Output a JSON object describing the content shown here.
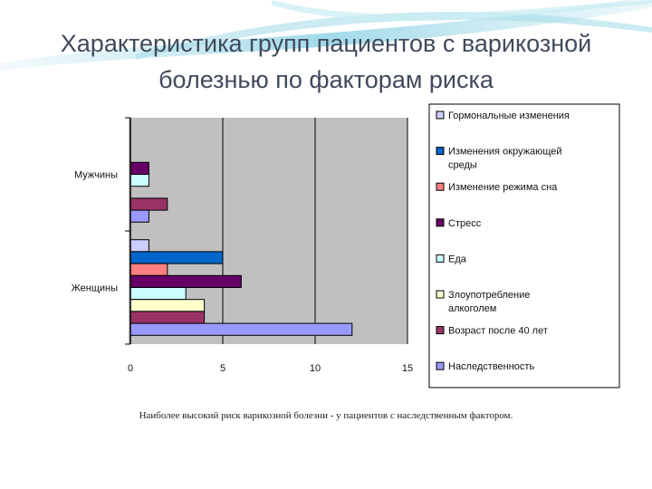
{
  "slide": {
    "title_line1": "Характеристика групп пациентов с варикозной",
    "title_line2": "болезнью по факторам риска",
    "caption": "Наиболее высокий риск варикозной болезни - у пациентов с наследственным фактором."
  },
  "chart_data": {
    "type": "bar",
    "orientation": "horizontal",
    "title": "",
    "xlabel": "",
    "ylabel": "",
    "xlim": [
      0,
      15
    ],
    "xticks": [
      0,
      5,
      10,
      15
    ],
    "grid": true,
    "legend_position": "right",
    "categories": [
      "Женщины",
      "Мужчины"
    ],
    "series": [
      {
        "name": "Гормональные изменения",
        "color": "#ccccff",
        "values": [
          1,
          null
        ]
      },
      {
        "name": "Изменения окружающей среды",
        "color": "#0066cc",
        "values": [
          5,
          null
        ]
      },
      {
        "name": "Изменение режима сна",
        "color": "#ff8080",
        "values": [
          2,
          null
        ]
      },
      {
        "name": "Стресс",
        "color": "#660066",
        "values": [
          6,
          1
        ]
      },
      {
        "name": "Еда",
        "color": "#ccffff",
        "values": [
          3,
          1
        ]
      },
      {
        "name": "Злоупотребление алкоголем",
        "color": "#ffffcc",
        "values": [
          4,
          null
        ]
      },
      {
        "name": "Возраст после 40 лет",
        "color": "#993366",
        "values": [
          4,
          2
        ]
      },
      {
        "name": "Наследственность",
        "color": "#9999ff",
        "values": [
          12,
          1
        ]
      }
    ]
  }
}
